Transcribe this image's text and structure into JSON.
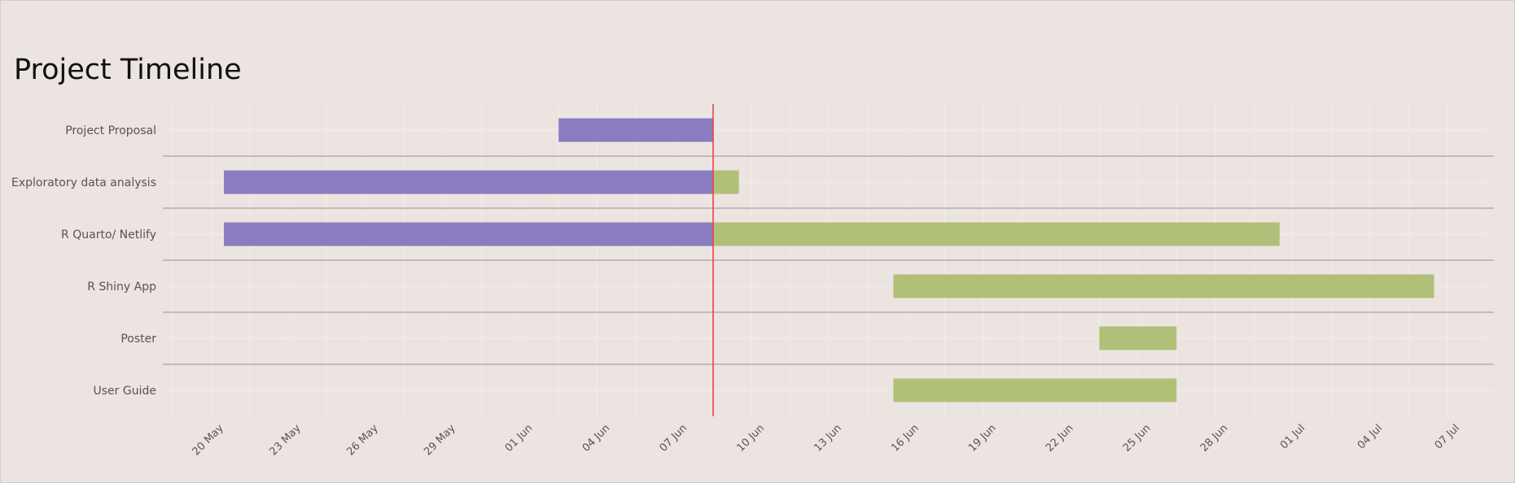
{
  "chart_data": {
    "type": "gantt",
    "title": "Project Timeline",
    "x_axis": {
      "type": "date",
      "range": [
        "2024-05-15",
        "2024-07-09"
      ],
      "ticks": [
        {
          "date": "2024-05-20",
          "label": "20 May"
        },
        {
          "date": "2024-05-23",
          "label": "23 May"
        },
        {
          "date": "2024-05-26",
          "label": "26 May"
        },
        {
          "date": "2024-05-29",
          "label": "29 May"
        },
        {
          "date": "2024-06-01",
          "label": "01 Jun"
        },
        {
          "date": "2024-06-04",
          "label": "04 Jun"
        },
        {
          "date": "2024-06-07",
          "label": "07 Jun"
        },
        {
          "date": "2024-06-10",
          "label": "10 Jun"
        },
        {
          "date": "2024-06-13",
          "label": "13 Jun"
        },
        {
          "date": "2024-06-16",
          "label": "16 Jun"
        },
        {
          "date": "2024-06-19",
          "label": "19 Jun"
        },
        {
          "date": "2024-06-22",
          "label": "22 Jun"
        },
        {
          "date": "2024-06-25",
          "label": "25 Jun"
        },
        {
          "date": "2024-06-28",
          "label": "28 Jun"
        },
        {
          "date": "2024-07-01",
          "label": "01 Jul"
        },
        {
          "date": "2024-07-04",
          "label": "04 Jul"
        },
        {
          "date": "2024-07-07",
          "label": "07 Jul"
        }
      ]
    },
    "today": "2024-06-08",
    "grid": true,
    "colors": {
      "completed": "#8b7bc1",
      "remaining": "#b1c079",
      "today_line": "#e8453c",
      "separator": "#b5adab",
      "grid": "#f4eeeb"
    },
    "tasks": [
      {
        "name": "Project Proposal",
        "start": "2024-06-02",
        "end": "2024-06-08"
      },
      {
        "name": "Exploratory data analysis",
        "start": "2024-05-20",
        "end": "2024-06-09"
      },
      {
        "name": "R Quarto/ Netlify",
        "start": "2024-05-20",
        "end": "2024-06-30"
      },
      {
        "name": "R Shiny App",
        "start": "2024-06-15",
        "end": "2024-07-06"
      },
      {
        "name": "Poster",
        "start": "2024-06-23",
        "end": "2024-06-26"
      },
      {
        "name": "User Guide",
        "start": "2024-06-15",
        "end": "2024-06-26"
      }
    ]
  }
}
